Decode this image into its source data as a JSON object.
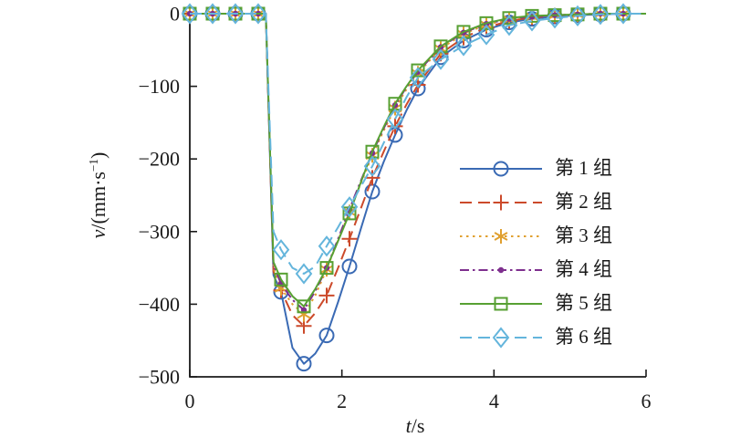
{
  "chart_data": {
    "type": "line",
    "title": "",
    "xlabel": {
      "variable": "t",
      "unit": "/s"
    },
    "ylabel": {
      "variable": "v",
      "unit_prefix": "/(mm·s",
      "unit_sup": "−1",
      "unit_suffix": ")"
    },
    "xlim": [
      0,
      6
    ],
    "ylim": [
      -500,
      0
    ],
    "xticks": {
      "values": [
        0,
        2,
        4,
        6
      ],
      "labels": [
        "0",
        "2",
        "4",
        "6"
      ]
    },
    "yticks": {
      "values": [
        0,
        -100,
        -200,
        -300,
        -400,
        -500
      ],
      "labels": [
        "0",
        "−100",
        "−200",
        "−300",
        "−400",
        "−500"
      ]
    },
    "grid": false,
    "legend_position": "inside-right",
    "marker_interval_s": 0.3,
    "axis_color": "#1a1a1a",
    "background_color": "#ffffff",
    "x": [
      0,
      0.3,
      0.6,
      0.9,
      1.0,
      1.1,
      1.2,
      1.35,
      1.5,
      1.65,
      1.8,
      1.95,
      2.1,
      2.25,
      2.4,
      2.55,
      2.7,
      2.85,
      3.0,
      3.3,
      3.6,
      3.9,
      4.2,
      4.5,
      4.8,
      5.1,
      5.4,
      5.7,
      6.0
    ],
    "series": [
      {
        "name": "第 1 组",
        "color": "#3a6ab4",
        "line": "solid",
        "marker": "circle",
        "values": [
          0,
          0,
          0,
          0,
          0,
          -360,
          -383,
          -460,
          -482,
          -468,
          -443,
          -397,
          -348,
          -296,
          -245,
          -204,
          -167,
          -133,
          -103,
          -60,
          -37,
          -22,
          -12,
          -7,
          -4,
          -2,
          -1,
          0,
          0
        ]
      },
      {
        "name": "第 2 组",
        "color": "#cc4a2b",
        "line": "dashed",
        "marker": "plus",
        "values": [
          0,
          0,
          0,
          0,
          0,
          -355,
          -381,
          -415,
          -430,
          -412,
          -388,
          -350,
          -310,
          -268,
          -226,
          -190,
          -155,
          -125,
          -98,
          -55,
          -33,
          -19,
          -10,
          -5,
          -3,
          -1,
          0,
          0,
          0
        ]
      },
      {
        "name": "第 3 组",
        "color": "#e0a030",
        "line": "dotted",
        "marker": "asterisk",
        "values": [
          0,
          0,
          0,
          0,
          0,
          -350,
          -378,
          -400,
          -414,
          -388,
          -352,
          -312,
          -273,
          -233,
          -195,
          -161,
          -130,
          -104,
          -82,
          -48,
          -28,
          -15,
          -8,
          -4,
          -2,
          -1,
          0,
          0,
          0
        ]
      },
      {
        "name": "第 4 组",
        "color": "#7e2f8e",
        "line": "dashdot",
        "marker": "point",
        "values": [
          0,
          0,
          0,
          0,
          0,
          -346,
          -372,
          -394,
          -408,
          -382,
          -350,
          -310,
          -269,
          -230,
          -192,
          -158,
          -126,
          -101,
          -80,
          -46,
          -26,
          -14,
          -7,
          -4,
          -2,
          -1,
          0,
          0,
          0
        ]
      },
      {
        "name": "第 5 组",
        "color": "#57a033",
        "line": "solid",
        "marker": "square",
        "values": [
          0,
          0,
          0,
          0,
          0,
          -342,
          -366,
          -389,
          -403,
          -379,
          -350,
          -313,
          -275,
          -232,
          -190,
          -156,
          -124,
          -100,
          -78,
          -45,
          -25,
          -13,
          -6,
          -3,
          -2,
          -1,
          0,
          0,
          0
        ]
      },
      {
        "name": "第 6 组",
        "color": "#64b5dc",
        "line": "dashed",
        "marker": "diamond",
        "values": [
          0,
          0,
          0,
          0,
          0,
          -300,
          -325,
          -350,
          -358,
          -348,
          -320,
          -294,
          -266,
          -238,
          -210,
          -178,
          -145,
          -115,
          -88,
          -63,
          -44,
          -29,
          -16,
          -10,
          -6,
          -3,
          -1,
          0,
          0
        ]
      }
    ]
  }
}
